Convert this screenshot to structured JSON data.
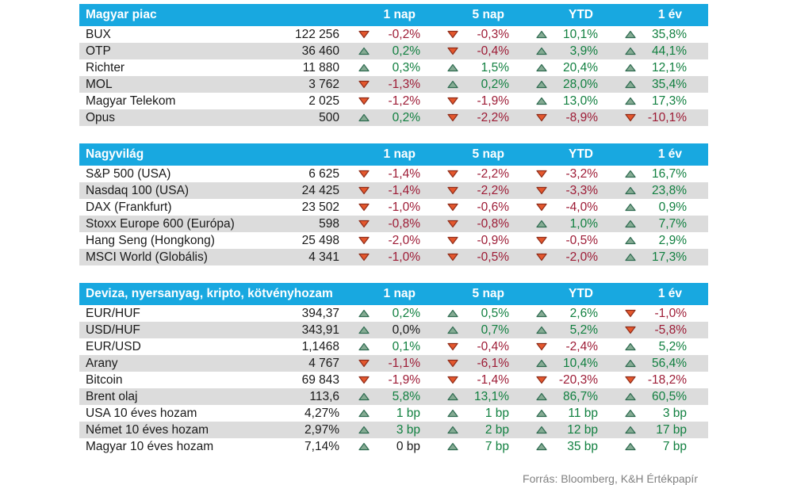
{
  "colors": {
    "header_bg": "#18a8e0",
    "stripe": "#dcdcdc",
    "positive_text": "#107f3f",
    "negative_text": "#9d1b35",
    "neutral_text": "#1a1a1a",
    "up_triangle_fill": "#85ab93",
    "up_triangle_stroke": "#2e6b50",
    "down_triangle_fill": "#e4572d",
    "down_triangle_stroke": "#8f2d1a"
  },
  "columns": [
    "1 nap",
    "5 nap",
    "YTD",
    "1 év"
  ],
  "sections": [
    {
      "title": "Magyar piac",
      "rows": [
        {
          "name": "BUX",
          "value": "122 256",
          "changes": [
            {
              "dir": "down",
              "tone": "neg",
              "text": "-0,2%"
            },
            {
              "dir": "down",
              "tone": "neg",
              "text": "-0,3%"
            },
            {
              "dir": "up",
              "tone": "pos",
              "text": "10,1%"
            },
            {
              "dir": "up",
              "tone": "pos",
              "text": "35,8%"
            }
          ]
        },
        {
          "name": "OTP",
          "value": "36 460",
          "changes": [
            {
              "dir": "up",
              "tone": "pos",
              "text": "0,2%"
            },
            {
              "dir": "down",
              "tone": "neg",
              "text": "-0,4%"
            },
            {
              "dir": "up",
              "tone": "pos",
              "text": "3,9%"
            },
            {
              "dir": "up",
              "tone": "pos",
              "text": "44,1%"
            }
          ]
        },
        {
          "name": "Richter",
          "value": "11 880",
          "changes": [
            {
              "dir": "up",
              "tone": "pos",
              "text": "0,3%"
            },
            {
              "dir": "up",
              "tone": "pos",
              "text": "1,5%"
            },
            {
              "dir": "up",
              "tone": "pos",
              "text": "20,4%"
            },
            {
              "dir": "up",
              "tone": "pos",
              "text": "12,1%"
            }
          ]
        },
        {
          "name": "MOL",
          "value": "3 762",
          "changes": [
            {
              "dir": "down",
              "tone": "neg",
              "text": "-1,3%"
            },
            {
              "dir": "up",
              "tone": "pos",
              "text": "0,2%"
            },
            {
              "dir": "up",
              "tone": "pos",
              "text": "28,0%"
            },
            {
              "dir": "up",
              "tone": "pos",
              "text": "35,4%"
            }
          ]
        },
        {
          "name": "Magyar Telekom",
          "value": "2 025",
          "changes": [
            {
              "dir": "down",
              "tone": "neg",
              "text": "-1,2%"
            },
            {
              "dir": "down",
              "tone": "neg",
              "text": "-1,9%"
            },
            {
              "dir": "up",
              "tone": "pos",
              "text": "13,0%"
            },
            {
              "dir": "up",
              "tone": "pos",
              "text": "17,3%"
            }
          ]
        },
        {
          "name": "Opus",
          "value": "500",
          "changes": [
            {
              "dir": "up",
              "tone": "pos",
              "text": "0,2%"
            },
            {
              "dir": "down",
              "tone": "neg",
              "text": "-2,2%"
            },
            {
              "dir": "down",
              "tone": "neg",
              "text": "-8,9%"
            },
            {
              "dir": "down",
              "tone": "neg",
              "text": "-10,1%"
            }
          ]
        }
      ]
    },
    {
      "title": "Nagyvilág",
      "rows": [
        {
          "name": "S&P 500 (USA)",
          "value": "6 625",
          "changes": [
            {
              "dir": "down",
              "tone": "neg",
              "text": "-1,4%"
            },
            {
              "dir": "down",
              "tone": "neg",
              "text": "-2,2%"
            },
            {
              "dir": "down",
              "tone": "neg",
              "text": "-3,2%"
            },
            {
              "dir": "up",
              "tone": "pos",
              "text": "16,7%"
            }
          ]
        },
        {
          "name": "Nasdaq 100 (USA)",
          "value": "24 425",
          "changes": [
            {
              "dir": "down",
              "tone": "neg",
              "text": "-1,4%"
            },
            {
              "dir": "down",
              "tone": "neg",
              "text": "-2,2%"
            },
            {
              "dir": "down",
              "tone": "neg",
              "text": "-3,3%"
            },
            {
              "dir": "up",
              "tone": "pos",
              "text": "23,8%"
            }
          ]
        },
        {
          "name": "DAX (Frankfurt)",
          "value": "23 502",
          "changes": [
            {
              "dir": "down",
              "tone": "neg",
              "text": "-1,0%"
            },
            {
              "dir": "down",
              "tone": "neg",
              "text": "-0,6%"
            },
            {
              "dir": "down",
              "tone": "neg",
              "text": "-4,0%"
            },
            {
              "dir": "up",
              "tone": "pos",
              "text": "0,9%"
            }
          ]
        },
        {
          "name": "Stoxx Europe 600 (Európa)",
          "value": "598",
          "changes": [
            {
              "dir": "down",
              "tone": "neg",
              "text": "-0,8%"
            },
            {
              "dir": "down",
              "tone": "neg",
              "text": "-0,8%"
            },
            {
              "dir": "up",
              "tone": "pos",
              "text": "1,0%"
            },
            {
              "dir": "up",
              "tone": "pos",
              "text": "7,7%"
            }
          ]
        },
        {
          "name": "Hang Seng (Hongkong)",
          "value": "25 498",
          "changes": [
            {
              "dir": "down",
              "tone": "neg",
              "text": "-2,0%"
            },
            {
              "dir": "down",
              "tone": "neg",
              "text": "-0,9%"
            },
            {
              "dir": "down",
              "tone": "neg",
              "text": "-0,5%"
            },
            {
              "dir": "up",
              "tone": "pos",
              "text": "2,9%"
            }
          ]
        },
        {
          "name": "MSCI World (Globális)",
          "value": "4 341",
          "changes": [
            {
              "dir": "down",
              "tone": "neg",
              "text": "-1,0%"
            },
            {
              "dir": "down",
              "tone": "neg",
              "text": "-0,5%"
            },
            {
              "dir": "down",
              "tone": "neg",
              "text": "-2,0%"
            },
            {
              "dir": "up",
              "tone": "pos",
              "text": "17,3%"
            }
          ]
        }
      ]
    },
    {
      "title": "Deviza, nyersanyag, kripto, kötvényhozam",
      "rows": [
        {
          "name": "EUR/HUF",
          "value": "394,37",
          "changes": [
            {
              "dir": "up",
              "tone": "pos",
              "text": "0,2%"
            },
            {
              "dir": "up",
              "tone": "pos",
              "text": "0,5%"
            },
            {
              "dir": "up",
              "tone": "pos",
              "text": "2,6%"
            },
            {
              "dir": "down",
              "tone": "neg",
              "text": "-1,0%"
            }
          ]
        },
        {
          "name": "USD/HUF",
          "value": "343,91",
          "changes": [
            {
              "dir": "up",
              "tone": "neutral",
              "text": "0,0%"
            },
            {
              "dir": "up",
              "tone": "pos",
              "text": "0,7%"
            },
            {
              "dir": "up",
              "tone": "pos",
              "text": "5,2%"
            },
            {
              "dir": "down",
              "tone": "neg",
              "text": "-5,8%"
            }
          ]
        },
        {
          "name": "EUR/USD",
          "value": "1,1468",
          "changes": [
            {
              "dir": "up",
              "tone": "pos",
              "text": "0,1%"
            },
            {
              "dir": "down",
              "tone": "neg",
              "text": "-0,4%"
            },
            {
              "dir": "down",
              "tone": "neg",
              "text": "-2,4%"
            },
            {
              "dir": "up",
              "tone": "pos",
              "text": "5,2%"
            }
          ]
        },
        {
          "name": "Arany",
          "value": "4 767",
          "changes": [
            {
              "dir": "down",
              "tone": "neg",
              "text": "-1,1%"
            },
            {
              "dir": "down",
              "tone": "neg",
              "text": "-6,1%"
            },
            {
              "dir": "up",
              "tone": "pos",
              "text": "10,4%"
            },
            {
              "dir": "up",
              "tone": "pos",
              "text": "56,4%"
            }
          ]
        },
        {
          "name": "Bitcoin",
          "value": "69 843",
          "changes": [
            {
              "dir": "down",
              "tone": "neg",
              "text": "-1,9%"
            },
            {
              "dir": "down",
              "tone": "neg",
              "text": "-1,4%"
            },
            {
              "dir": "down",
              "tone": "neg",
              "text": "-20,3%"
            },
            {
              "dir": "down",
              "tone": "neg",
              "text": "-18,2%"
            }
          ]
        },
        {
          "name": "Brent olaj",
          "value": "113,6",
          "changes": [
            {
              "dir": "up",
              "tone": "pos",
              "text": "5,8%"
            },
            {
              "dir": "up",
              "tone": "pos",
              "text": "13,1%"
            },
            {
              "dir": "up",
              "tone": "pos",
              "text": "86,7%"
            },
            {
              "dir": "up",
              "tone": "pos",
              "text": "60,5%"
            }
          ]
        },
        {
          "name": "USA 10 éves hozam",
          "value": "4,27%",
          "changes": [
            {
              "dir": "up",
              "tone": "pos",
              "text": "1 bp"
            },
            {
              "dir": "up",
              "tone": "pos",
              "text": "1 bp"
            },
            {
              "dir": "up",
              "tone": "pos",
              "text": "11 bp"
            },
            {
              "dir": "up",
              "tone": "pos",
              "text": "3 bp"
            }
          ]
        },
        {
          "name": "Német 10 éves hozam",
          "value": "2,97%",
          "changes": [
            {
              "dir": "up",
              "tone": "pos",
              "text": "3 bp"
            },
            {
              "dir": "up",
              "tone": "pos",
              "text": "2 bp"
            },
            {
              "dir": "up",
              "tone": "pos",
              "text": "12 bp"
            },
            {
              "dir": "up",
              "tone": "pos",
              "text": "17 bp"
            }
          ]
        },
        {
          "name": "Magyar 10 éves hozam",
          "value": "7,14%",
          "changes": [
            {
              "dir": "up",
              "tone": "neutral",
              "text": "0 bp"
            },
            {
              "dir": "up",
              "tone": "pos",
              "text": "7 bp"
            },
            {
              "dir": "up",
              "tone": "pos",
              "text": "35 bp"
            },
            {
              "dir": "up",
              "tone": "pos",
              "text": "7 bp"
            }
          ]
        }
      ]
    }
  ],
  "footer": "Forrás: Bloomberg, K&H Értékpapír"
}
